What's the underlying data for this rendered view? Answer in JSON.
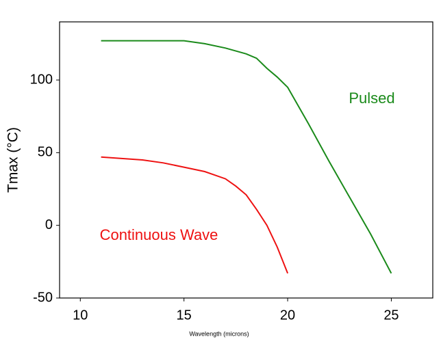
{
  "chart_data": {
    "type": "line",
    "xlabel": "Wavelength (microns)",
    "ylabel": "Tmax (°C)",
    "xlim": [
      9,
      27
    ],
    "ylim": [
      -50,
      140
    ],
    "xticks": [
      10,
      15,
      20,
      25
    ],
    "yticks": [
      -50,
      0,
      50,
      100
    ],
    "series": [
      {
        "name": "Pulsed",
        "color": "#1a8a1a",
        "x": [
          11,
          14.5,
          15,
          16,
          17,
          18,
          18.5,
          19,
          19.5,
          20,
          21,
          22,
          23,
          24,
          25
        ],
        "values": [
          127,
          127,
          127,
          125,
          122,
          118,
          115,
          108,
          102,
          95,
          70,
          44,
          19,
          -6,
          -33
        ]
      },
      {
        "name": "Continuous Wave",
        "color": "#ee1111",
        "x": [
          11,
          12,
          13,
          14,
          15,
          16,
          17,
          17.5,
          18,
          18.5,
          19,
          19.5,
          20
        ],
        "values": [
          47,
          46,
          45,
          43,
          40,
          37,
          32,
          27,
          21,
          11,
          0,
          -15,
          -33
        ]
      }
    ]
  }
}
